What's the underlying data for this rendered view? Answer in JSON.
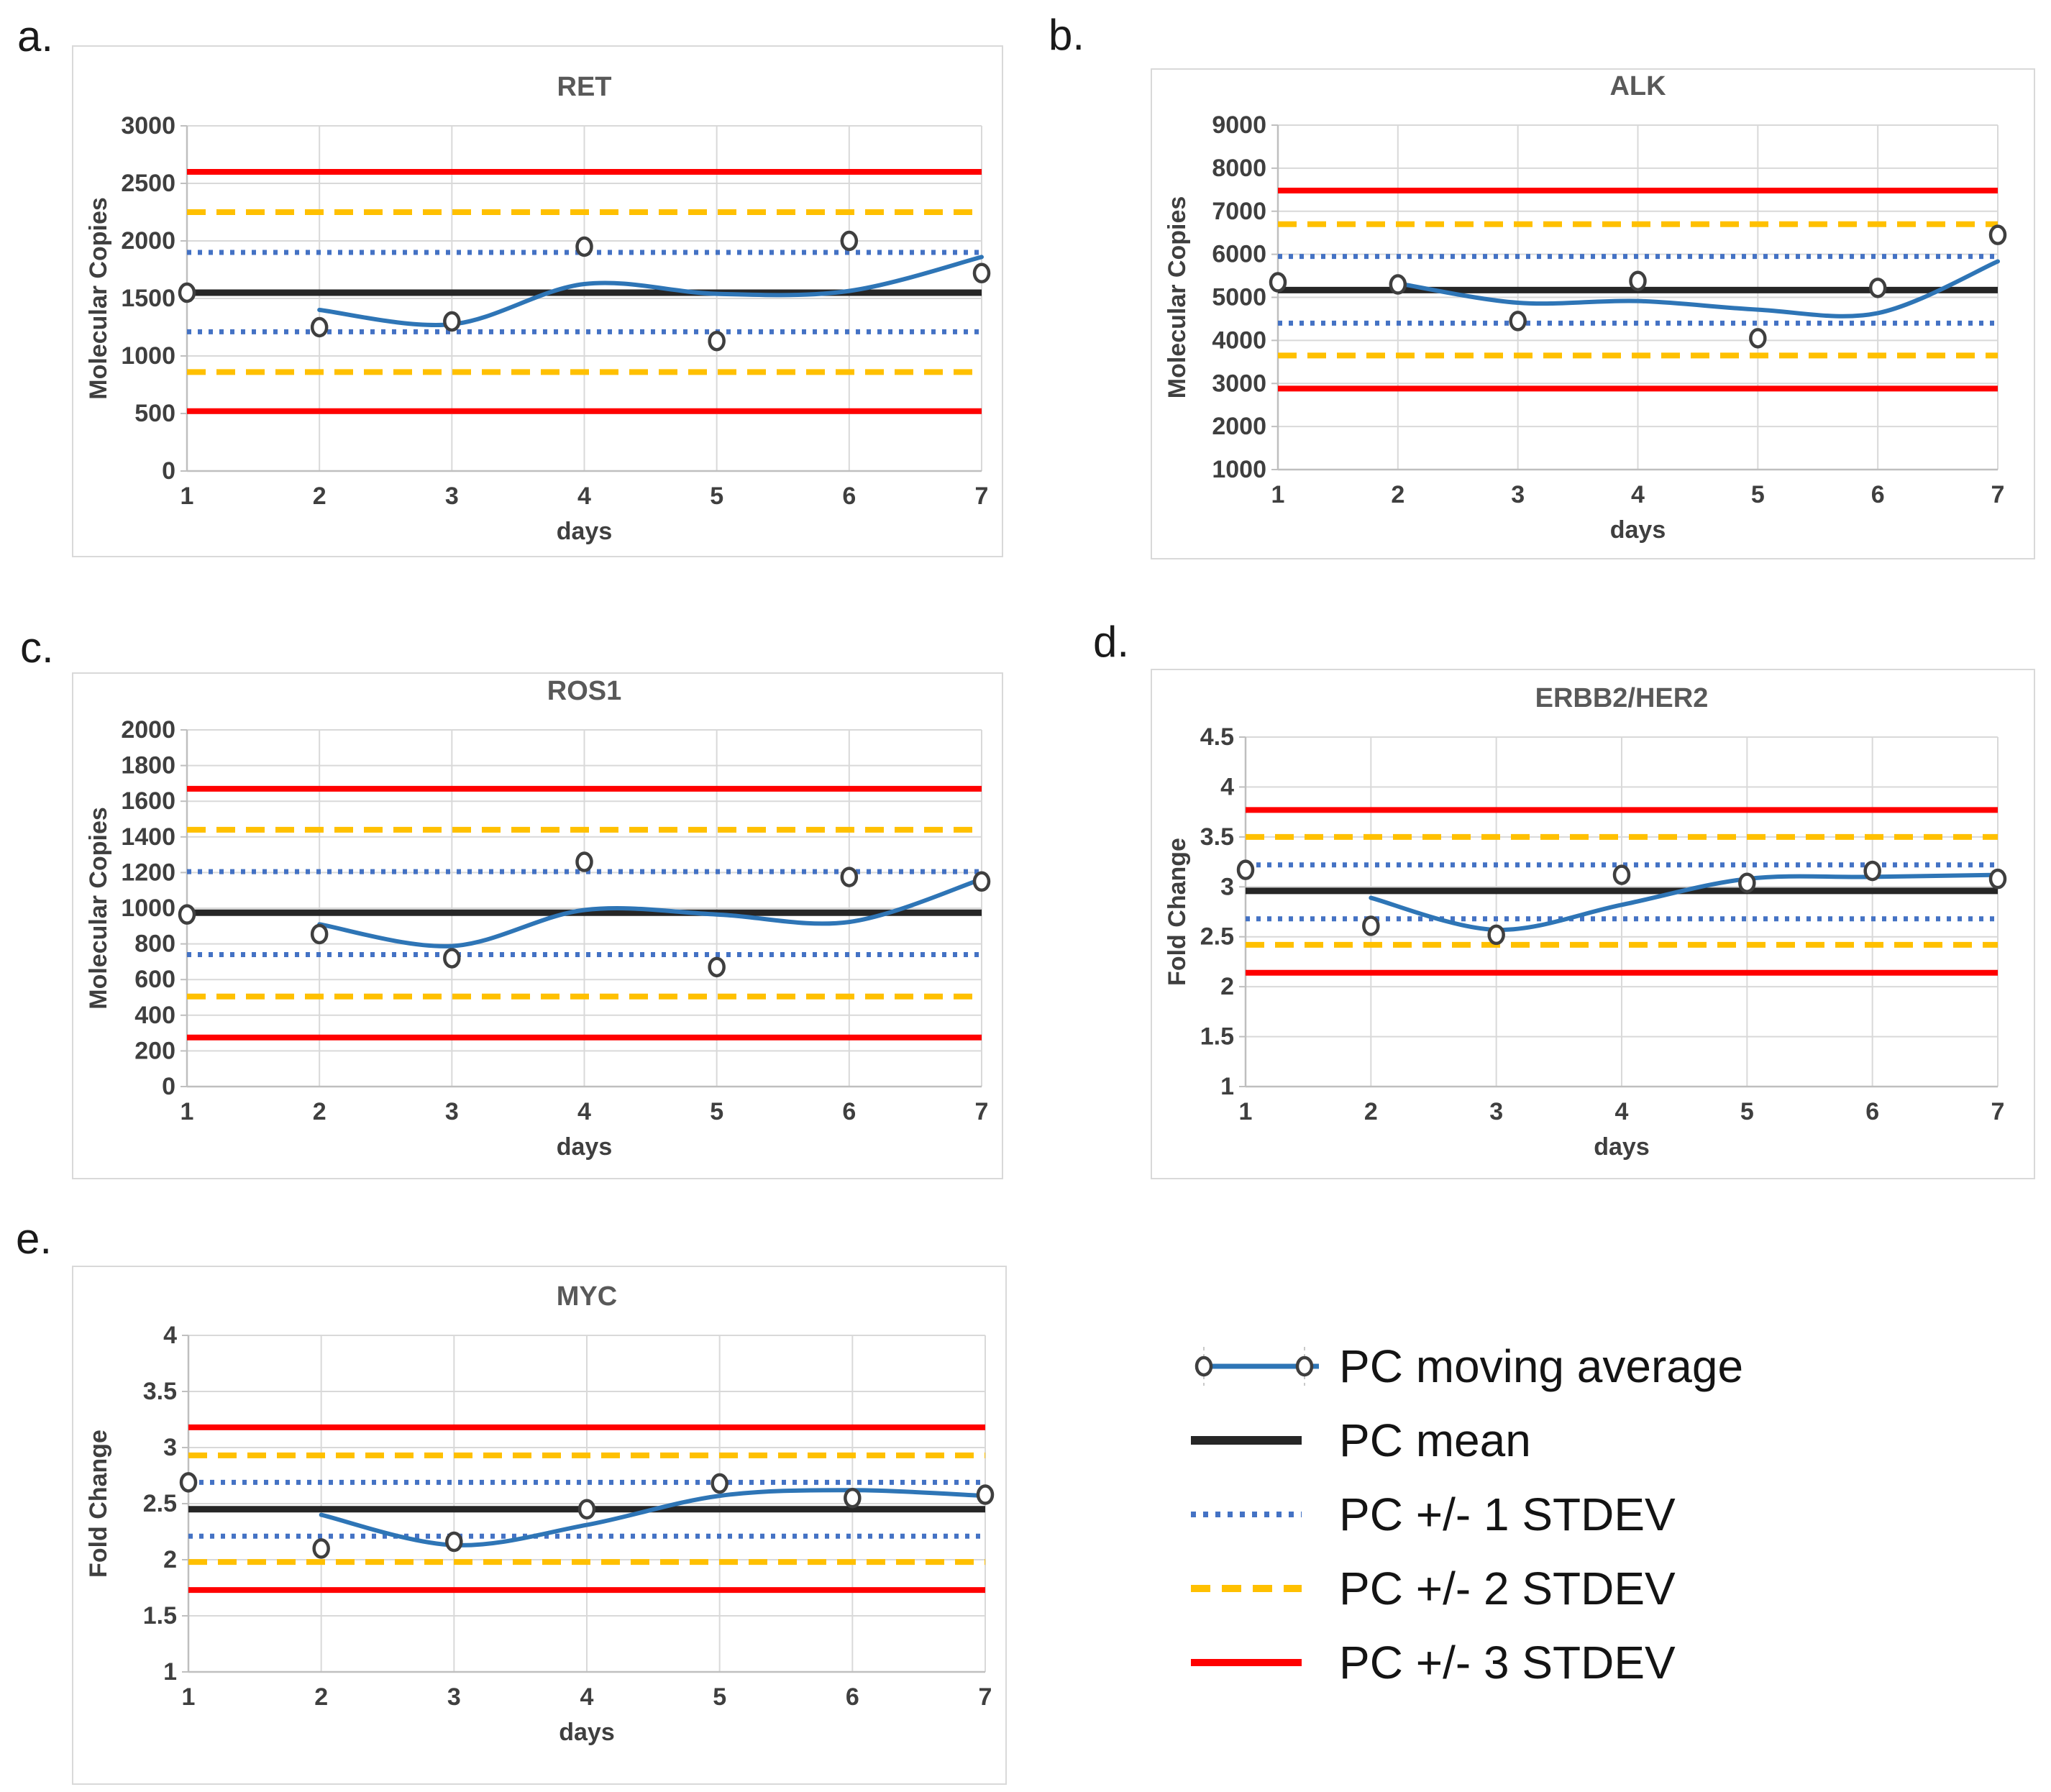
{
  "figure": {
    "background": "#ffffff",
    "description": "Five quality-control trend charts (a-e) of positive control (PC) measurements over 7 days with mean and standard-deviation control limits, plus a shared legend."
  },
  "colors": {
    "moving_average": "#2E75B6",
    "mean": "#262626",
    "stdev1": "#4472C4",
    "stdev2": "#FFC000",
    "stdev3": "#FF0000",
    "grid": "#D9D9D9",
    "axis": "#BFBFBF",
    "tick_text": "#3f3f3f",
    "title_text": "#595959",
    "marker_stroke": "#3f3f3f",
    "marker_fill": "#ffffff"
  },
  "legend": {
    "items": [
      {
        "label": "PC moving average",
        "style": "moving-average"
      },
      {
        "label": "PC mean",
        "style": "mean"
      },
      {
        "label": "PC +/- 1 STDEV",
        "style": "stdev1"
      },
      {
        "label": "PC +/- 2 STDEV",
        "style": "stdev2"
      },
      {
        "label": "PC +/- 3 STDEV",
        "style": "stdev3"
      }
    ]
  },
  "chart_data": [
    {
      "type": "line",
      "panel_letter": "a.",
      "title": "RET",
      "xlabel": "days",
      "ylabel": "Molecular Copies",
      "x": [
        1,
        2,
        3,
        4,
        5,
        6,
        7
      ],
      "xlim": [
        1,
        7
      ],
      "ylim": [
        0,
        3000
      ],
      "ytick_step": 500,
      "grid": true,
      "legend_position": "none",
      "points": [
        1550,
        1250,
        1300,
        1950,
        1130,
        2000,
        1720
      ],
      "moving_average": {
        "x": [
          2,
          3,
          4,
          5,
          6,
          7
        ],
        "values": [
          1400,
          1275,
          1625,
          1540,
          1565,
          1860
        ]
      },
      "mean": 1550,
      "stdev1": [
        1210,
        1900
      ],
      "stdev2": [
        860,
        2250
      ],
      "stdev3": [
        520,
        2600
      ]
    },
    {
      "type": "line",
      "panel_letter": "b.",
      "title": "ALK",
      "xlabel": "days",
      "ylabel": "Molecular Copies",
      "x": [
        1,
        2,
        3,
        4,
        5,
        6,
        7
      ],
      "xlim": [
        1,
        7
      ],
      "ylim": [
        1000,
        9000
      ],
      "ytick_step": 1000,
      "grid": true,
      "legend_position": "none",
      "points": [
        5350,
        5300,
        4450,
        5380,
        4050,
        5220,
        6450
      ],
      "moving_average": {
        "x": [
          2,
          3,
          4,
          5,
          6,
          7
        ],
        "values": [
          5325,
          4875,
          4915,
          4715,
          4635,
          5835
        ]
      },
      "mean": 5170,
      "stdev1": [
        4400,
        5950
      ],
      "stdev2": [
        3650,
        6700
      ],
      "stdev3": [
        2880,
        7480
      ]
    },
    {
      "type": "line",
      "panel_letter": "c.",
      "title": "ROS1",
      "xlabel": "days",
      "ylabel": "Molecular Copies",
      "x": [
        1,
        2,
        3,
        4,
        5,
        6,
        7
      ],
      "xlim": [
        1,
        7
      ],
      "ylim": [
        0,
        2000
      ],
      "ytick_step": 200,
      "grid": true,
      "legend_position": "none",
      "points": [
        965,
        855,
        720,
        1260,
        670,
        1175,
        1150
      ],
      "moving_average": {
        "x": [
          2,
          3,
          4,
          5,
          6,
          7
        ],
        "values": [
          910,
          788,
          990,
          965,
          923,
          1163
        ]
      },
      "mean": 975,
      "stdev1": [
        740,
        1205
      ],
      "stdev2": [
        505,
        1440
      ],
      "stdev3": [
        275,
        1670
      ]
    },
    {
      "type": "line",
      "panel_letter": "d.",
      "title": "ERBB2/HER2",
      "xlabel": "days",
      "ylabel": "Fold Change",
      "x": [
        1,
        2,
        3,
        4,
        5,
        6,
        7
      ],
      "xlim": [
        1,
        7
      ],
      "ylim": [
        1,
        4.5
      ],
      "ytick_step": 0.5,
      "grid": true,
      "legend_position": "none",
      "points": [
        3.17,
        2.61,
        2.52,
        3.12,
        3.04,
        3.16,
        3.08
      ],
      "moving_average": {
        "x": [
          2,
          3,
          4,
          5,
          6,
          7
        ],
        "values": [
          2.89,
          2.57,
          2.82,
          3.08,
          3.1,
          3.12
        ]
      },
      "mean": 2.96,
      "stdev1": [
        2.68,
        3.22
      ],
      "stdev2": [
        2.42,
        3.5
      ],
      "stdev3": [
        2.14,
        3.77
      ]
    },
    {
      "type": "line",
      "panel_letter": "e.",
      "title": "MYC",
      "xlabel": "days",
      "ylabel": "Fold Change",
      "x": [
        1,
        2,
        3,
        4,
        5,
        6,
        7
      ],
      "xlim": [
        1,
        7
      ],
      "ylim": [
        1,
        4
      ],
      "ytick_step": 0.5,
      "grid": true,
      "legend_position": "none",
      "points": [
        2.69,
        2.1,
        2.16,
        2.45,
        2.68,
        2.55,
        2.58
      ],
      "moving_average": {
        "x": [
          2,
          3,
          4,
          5,
          6,
          7
        ],
        "values": [
          2.4,
          2.13,
          2.31,
          2.57,
          2.62,
          2.57
        ]
      },
      "mean": 2.45,
      "stdev1": [
        2.21,
        2.69
      ],
      "stdev2": [
        1.98,
        2.93
      ],
      "stdev3": [
        1.73,
        3.18
      ]
    }
  ]
}
